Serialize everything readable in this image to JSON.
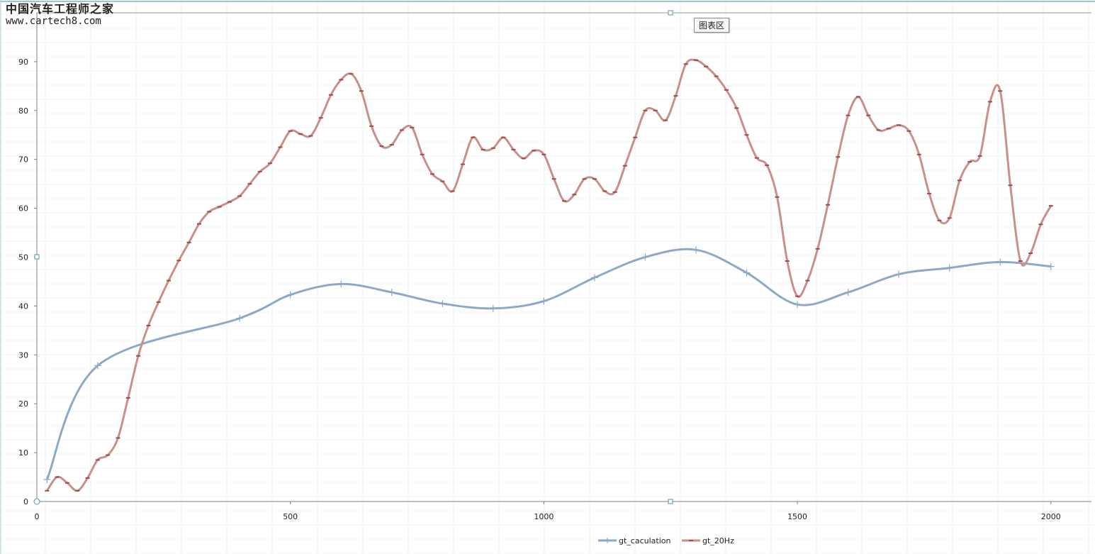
{
  "watermark": {
    "line1": "中国汽车工程师之家",
    "line2": "www.cartech8.com"
  },
  "tooltip": {
    "label": "图表区"
  },
  "colors": {
    "gt_caculation": "#8ea9c7",
    "gt_20Hz": "#c98f8a",
    "axis": "#808080",
    "handle": "#5a8fb0"
  },
  "chart_data": {
    "type": "line",
    "smooth": true,
    "title": "",
    "xlabel": "",
    "ylabel": "",
    "xlim": [
      0,
      2080
    ],
    "ylim": [
      0,
      100
    ],
    "x_ticks": [
      0,
      500,
      1000,
      1500,
      2000
    ],
    "y_ticks": [
      0,
      10,
      20,
      30,
      40,
      50,
      60,
      70,
      80,
      90
    ],
    "grid": false,
    "legend_position": "bottom",
    "series": [
      {
        "name": "gt_caculation",
        "marker": "plus",
        "x": [
          20,
          120,
          400,
          500,
          600,
          700,
          800,
          900,
          1000,
          1100,
          1200,
          1300,
          1400,
          1500,
          1600,
          1700,
          1800,
          1900,
          2000
        ],
        "y": [
          4.5,
          27.8,
          37.5,
          42.3,
          44.5,
          42.8,
          40.5,
          39.5,
          41.0,
          45.8,
          50.0,
          51.5,
          46.8,
          40.3,
          42.8,
          46.5,
          47.8,
          49.0,
          48.1
        ]
      },
      {
        "name": "gt_20Hz",
        "marker": "dash",
        "x": [
          20,
          40,
          60,
          80,
          100,
          120,
          140,
          160,
          180,
          200,
          220,
          240,
          260,
          280,
          300,
          320,
          340,
          360,
          380,
          400,
          420,
          440,
          460,
          480,
          500,
          520,
          540,
          560,
          580,
          600,
          620,
          640,
          660,
          680,
          700,
          720,
          740,
          760,
          780,
          800,
          820,
          840,
          860,
          880,
          900,
          920,
          940,
          960,
          980,
          1000,
          1020,
          1040,
          1060,
          1080,
          1100,
          1120,
          1140,
          1160,
          1180,
          1200,
          1220,
          1240,
          1260,
          1280,
          1300,
          1320,
          1340,
          1360,
          1380,
          1400,
          1420,
          1440,
          1460,
          1480,
          1500,
          1520,
          1540,
          1560,
          1580,
          1600,
          1620,
          1640,
          1660,
          1680,
          1700,
          1720,
          1740,
          1760,
          1780,
          1800,
          1820,
          1840,
          1860,
          1880,
          1900,
          1920,
          1940,
          1960,
          1980,
          2000
        ],
        "y": [
          2.2,
          5.0,
          3.8,
          2.2,
          4.8,
          8.5,
          9.5,
          13.0,
          21.2,
          29.8,
          36.0,
          40.8,
          45.2,
          49.3,
          53.0,
          56.8,
          59.3,
          60.3,
          61.3,
          62.5,
          65.0,
          67.5,
          69.2,
          72.5,
          75.8,
          75.2,
          74.8,
          78.5,
          83.2,
          86.3,
          87.5,
          84.0,
          76.8,
          72.7,
          73.0,
          76.0,
          76.5,
          71.0,
          67.0,
          65.5,
          63.5,
          69.0,
          74.5,
          72.0,
          72.3,
          74.5,
          72.0,
          70.2,
          71.8,
          71.0,
          66.0,
          61.5,
          62.8,
          66.0,
          66.0,
          63.5,
          63.3,
          68.7,
          74.5,
          80.0,
          80.0,
          78.0,
          83.0,
          89.5,
          90.3,
          89.0,
          87.0,
          84.2,
          80.5,
          75.0,
          70.3,
          68.8,
          62.3,
          49.2,
          42.0,
          45.2,
          51.7,
          60.7,
          70.5,
          79.0,
          82.8,
          79.0,
          76.0,
          76.3,
          77.0,
          75.8,
          71.0,
          63.0,
          57.5,
          58.0,
          65.7,
          69.5,
          70.7,
          81.8,
          84.0,
          64.7,
          49.2,
          50.8,
          56.7,
          60.5
        ]
      }
    ]
  }
}
